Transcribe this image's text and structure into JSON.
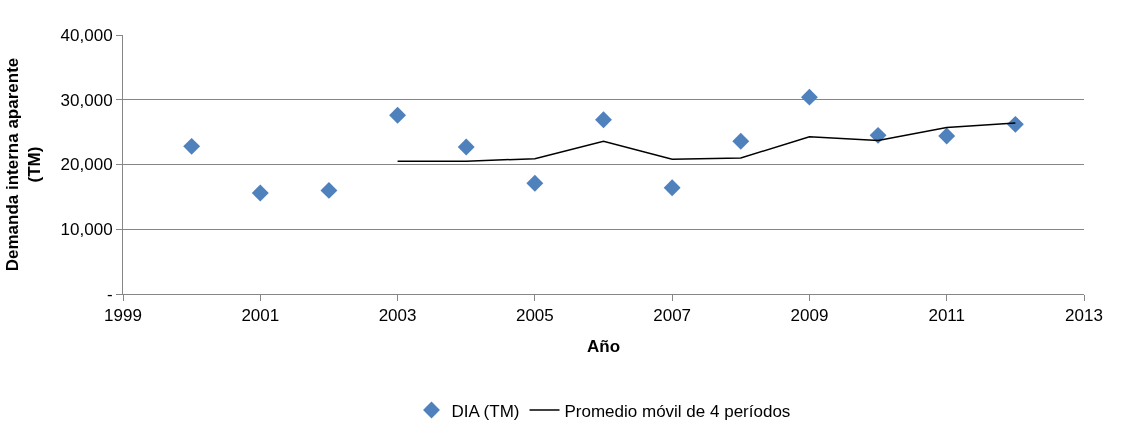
{
  "chart_data": {
    "type": "scatter",
    "xlabel": "Año",
    "ylabel": "Demanda interna aparente (TM)",
    "xlim": [
      1999,
      2013
    ],
    "xticks": [
      1999,
      2001,
      2003,
      2005,
      2007,
      2009,
      2011,
      2013
    ],
    "ylim": [
      0,
      40000
    ],
    "yticks": [
      {
        "value": 0,
        "label": "-"
      },
      {
        "value": 10000,
        "label": "10,000"
      },
      {
        "value": 20000,
        "label": "20,000"
      },
      {
        "value": 30000,
        "label": "30,000"
      },
      {
        "value": 40000,
        "label": "40,000"
      }
    ],
    "grid": "y",
    "legend": "bottom",
    "series": [
      {
        "name": "DIA (TM)",
        "marker": "diamond",
        "color": "#4f81bd",
        "x": [
          2000,
          2001,
          2002,
          2003,
          2004,
          2005,
          2006,
          2007,
          2008,
          2009,
          2010,
          2011,
          2012
        ],
        "values": [
          22800,
          15600,
          16000,
          27600,
          22700,
          17100,
          26900,
          16400,
          23600,
          30400,
          24500,
          24400,
          26200
        ]
      },
      {
        "name": "Promedio móvil de 4 períodos",
        "type": "line",
        "marker": "none",
        "line_style": "solid",
        "color": "#000000",
        "x": [
          2003,
          2004,
          2005,
          2006,
          2007,
          2008,
          2009,
          2010,
          2011,
          2012
        ],
        "values": [
          20500,
          20500,
          20900,
          23600,
          20800,
          21000,
          24300,
          23700,
          25700,
          26400
        ]
      }
    ]
  }
}
